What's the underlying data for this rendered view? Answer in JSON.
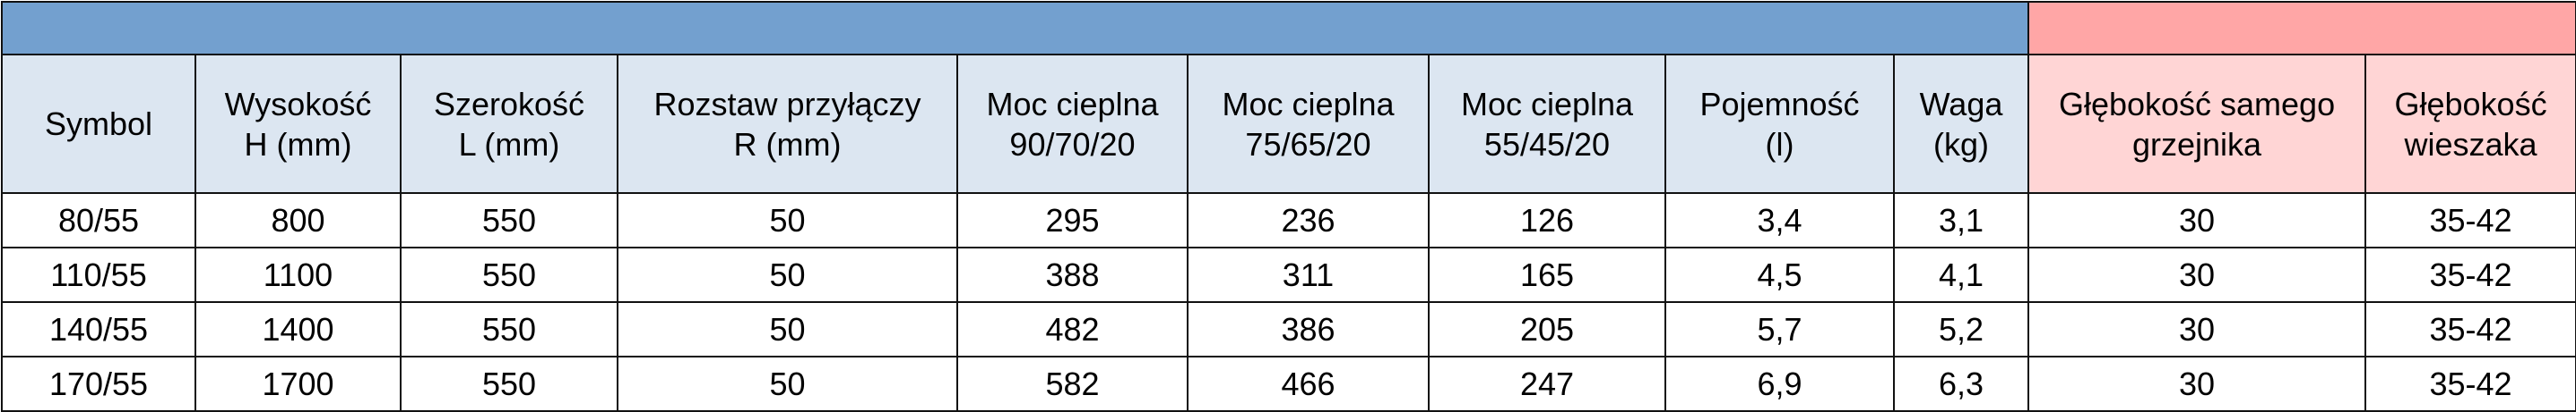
{
  "colors": {
    "blue_band": "#73a0cf",
    "pink_band": "#ffa6a6",
    "blue_head": "#dce6f1",
    "pink_head": "#ffd5d5"
  },
  "headers": [
    [
      "Symbol"
    ],
    [
      "Wysokość",
      "H (mm)"
    ],
    [
      "Szerokość",
      "L (mm)"
    ],
    [
      "Rozstaw przyłączy",
      "R (mm)"
    ],
    [
      "Moc cieplna",
      "90/70/20"
    ],
    [
      "Moc cieplna",
      "75/65/20"
    ],
    [
      "Moc cieplna",
      "55/45/20"
    ],
    [
      "Pojemność",
      "(l)"
    ],
    [
      "Waga",
      "(kg)"
    ],
    [
      "Głębokość samego",
      "grzejnika"
    ],
    [
      "Głębokość",
      "wieszaka"
    ]
  ],
  "rows": [
    [
      "80/55",
      "800",
      "550",
      "50",
      "295",
      "236",
      "126",
      "3,4",
      "3,1",
      "30",
      "35-42"
    ],
    [
      "110/55",
      "1100",
      "550",
      "50",
      "388",
      "311",
      "165",
      "4,5",
      "4,1",
      "30",
      "35-42"
    ],
    [
      "140/55",
      "1400",
      "550",
      "50",
      "482",
      "386",
      "205",
      "5,7",
      "5,2",
      "30",
      "35-42"
    ],
    [
      "170/55",
      "1700",
      "550",
      "50",
      "582",
      "466",
      "247",
      "6,9",
      "6,3",
      "30",
      "35-42"
    ]
  ]
}
